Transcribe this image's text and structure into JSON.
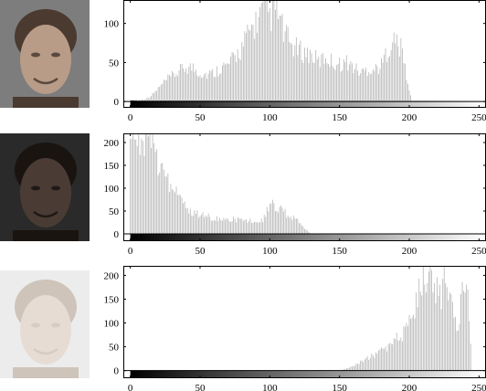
{
  "figure": {
    "panels": [
      {
        "thumbnail": {
          "name": "face-photo-normal",
          "gray_bg": "#7d7d7d",
          "skin": "#b89c88",
          "hair": "#4a3a30",
          "shadow": "#5a4a40"
        }
      },
      {
        "thumbnail": {
          "name": "face-photo-dark",
          "gray_bg": "#2a2a2a",
          "skin": "#4a3c34",
          "hair": "#1a1410",
          "shadow": "#201a16"
        }
      },
      {
        "thumbnail": {
          "name": "face-photo-bright",
          "gray_bg": "#ececec",
          "skin": "#e6dcd4",
          "hair": "#cfc4ba",
          "shadow": "#d6ccc4"
        }
      }
    ]
  },
  "chart_data": [
    {
      "type": "bar",
      "title": "",
      "xlabel": "",
      "ylabel": "",
      "xlim": [
        -5,
        255
      ],
      "ylim": [
        -8,
        130
      ],
      "xticks": [
        0,
        50,
        100,
        150,
        200,
        250
      ],
      "yticks": [
        0,
        50,
        100
      ],
      "grid": false,
      "bar_color": "#b5b5b5",
      "gradient_bar": true,
      "x": [
        0,
        10,
        15,
        20,
        25,
        30,
        35,
        40,
        45,
        50,
        55,
        60,
        65,
        70,
        75,
        80,
        85,
        90,
        95,
        98,
        100,
        102,
        105,
        110,
        115,
        120,
        125,
        130,
        135,
        140,
        145,
        150,
        155,
        160,
        165,
        170,
        175,
        180,
        185,
        190,
        195,
        198,
        200,
        202
      ],
      "values": [
        0,
        3,
        8,
        18,
        28,
        35,
        42,
        48,
        47,
        40,
        38,
        40,
        48,
        50,
        62,
        75,
        95,
        110,
        125,
        130,
        118,
        124,
        130,
        95,
        80,
        72,
        68,
        65,
        55,
        62,
        55,
        52,
        55,
        48,
        40,
        45,
        45,
        50,
        75,
        85,
        70,
        35,
        15,
        0
      ]
    },
    {
      "type": "bar",
      "title": "",
      "xlabel": "",
      "ylabel": "",
      "xlim": [
        -5,
        255
      ],
      "ylim": [
        -16,
        220
      ],
      "xticks": [
        0,
        50,
        100,
        150,
        200,
        250
      ],
      "yticks": [
        0,
        50,
        100,
        150,
        200
      ],
      "grid": false,
      "bar_color": "#b5b5b5",
      "gradient_bar": true,
      "x": [
        0,
        3,
        6,
        10,
        15,
        20,
        25,
        30,
        35,
        40,
        45,
        50,
        55,
        60,
        65,
        70,
        75,
        80,
        85,
        90,
        95,
        100,
        103,
        106,
        110,
        115,
        120,
        125,
        128,
        130
      ],
      "values": [
        215,
        220,
        205,
        210,
        220,
        165,
        140,
        115,
        95,
        60,
        50,
        45,
        42,
        38,
        35,
        30,
        35,
        32,
        30,
        32,
        35,
        65,
        72,
        62,
        55,
        40,
        30,
        12,
        5,
        0
      ]
    },
    {
      "type": "bar",
      "title": "",
      "xlabel": "",
      "ylabel": "",
      "xlim": [
        -5,
        255
      ],
      "ylim": [
        -16,
        220
      ],
      "xticks": [
        0,
        50,
        100,
        150,
        200,
        250
      ],
      "yticks": [
        0,
        50,
        100,
        150,
        200
      ],
      "grid": false,
      "bar_color": "#b5b5b5",
      "gradient_bar": true,
      "x": [
        150,
        155,
        160,
        165,
        170,
        175,
        180,
        185,
        190,
        195,
        200,
        205,
        208,
        210,
        213,
        215,
        218,
        220,
        223,
        225,
        228,
        230,
        233,
        235,
        238,
        240,
        243,
        245
      ],
      "values": [
        0,
        5,
        10,
        20,
        28,
        35,
        48,
        55,
        70,
        80,
        110,
        150,
        205,
        220,
        190,
        215,
        175,
        200,
        150,
        205,
        165,
        150,
        110,
        90,
        200,
        220,
        140,
        0
      ]
    }
  ]
}
